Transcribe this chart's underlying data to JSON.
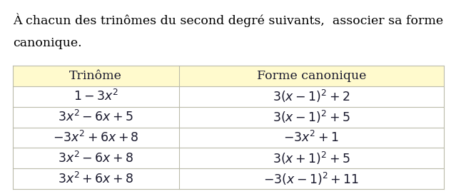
{
  "title_line1": "À chacun des trinômes du second degré suivants,  associer sa forme",
  "title_line2": "canonique.",
  "header": [
    "Trinôme",
    "Forme canonique"
  ],
  "rows": [
    [
      "$1 - 3x^2$",
      "$3(x-1)^2+2$"
    ],
    [
      "$3x^2 - 6x + 5$",
      "$3(x-1)^2+5$"
    ],
    [
      "$-3x^2 + 6x + 8$",
      "$-3x^2+1$"
    ],
    [
      "$3x^2 - 6x + 8$",
      "$3(x+1)^2+5$"
    ],
    [
      "$3x^2 + 6x + 8$",
      "$-3(x-1)^2+11$"
    ]
  ],
  "header_bg": "#FFFACD",
  "row_bg": "#FFFFFF",
  "border_color": "#BBBBAA",
  "text_color": "#1a1a2e",
  "title_color": "#000000",
  "title_fontsize": 12.5,
  "header_fontsize": 12.5,
  "cell_fontsize": 12.5,
  "fig_bg": "#FFFFFF",
  "col_split": 0.385
}
